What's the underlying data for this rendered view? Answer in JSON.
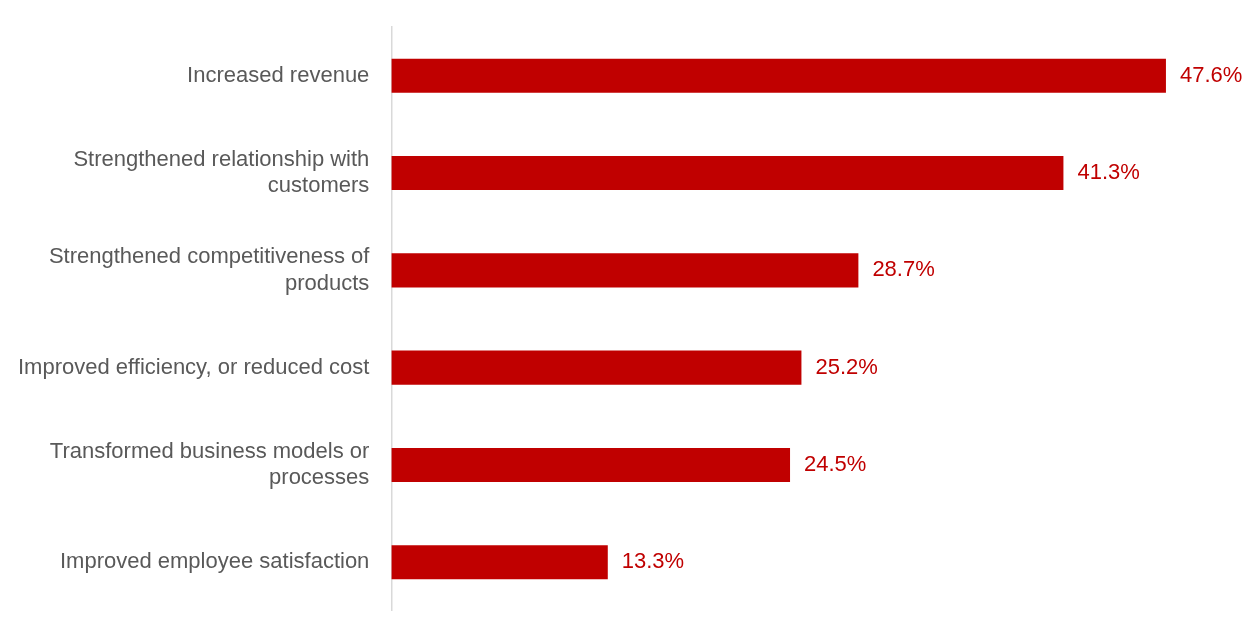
{
  "chart_data": {
    "type": "bar",
    "orientation": "horizontal",
    "categories": [
      "Increased revenue",
      "Strengthened relationship with customers",
      "Strengthened competitiveness of products",
      "Improved efficiency, or reduced cost",
      "Transformed business models or processes",
      "Improved employee satisfaction"
    ],
    "values": [
      47.6,
      41.3,
      28.7,
      25.2,
      24.5,
      13.3
    ],
    "value_labels": [
      "47.6%",
      "41.3%",
      "28.7%",
      "25.2%",
      "24.5%",
      "13.3%"
    ],
    "color": "#c00000"
  }
}
